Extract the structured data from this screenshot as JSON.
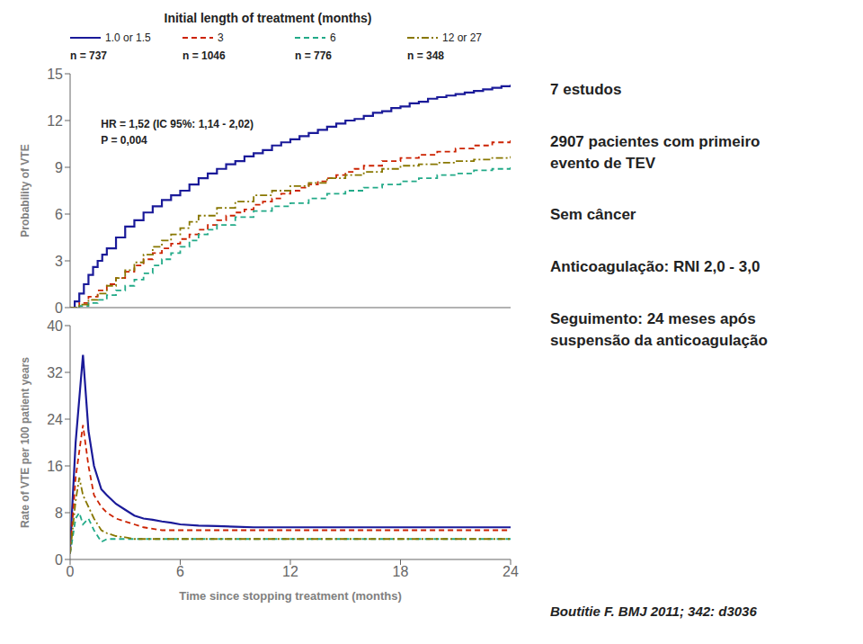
{
  "chart_data": [
    {
      "type": "step",
      "title": "Initial length of treatment (months)",
      "legend": "top",
      "grid": false,
      "tick_labels": "y",
      "y_label": "Probability of VTE",
      "xlim": [
        0,
        24
      ],
      "ylim": [
        0,
        15
      ],
      "yticks": [
        0,
        3,
        6,
        9,
        12,
        15
      ],
      "annotations": [
        [
          "n = 737",
          "n = 1046",
          "n = 776",
          "n = 348"
        ],
        [
          "HR = 1,52 (IC 95%: 1,14 - 2,02)",
          "P = 0,004"
        ]
      ],
      "series": [
        {
          "name": "1.0 or 1.5",
          "color": "#1a1a99",
          "line_style": "solid",
          "x": [
            0,
            0.25,
            0.5,
            0.75,
            1.0,
            1.25,
            1.5,
            1.75,
            2.0,
            2.5,
            3.0,
            3.5,
            4.0,
            4.5,
            5.0,
            5.5,
            6.0,
            6.5,
            7.0,
            7.5,
            8.0,
            8.5,
            9.0,
            9.5,
            10.0,
            10.5,
            11.0,
            11.5,
            12.0,
            12.5,
            13.0,
            13.5,
            14.0,
            14.5,
            15.0,
            15.5,
            16.0,
            16.5,
            17.0,
            17.5,
            18.0,
            18.5,
            19.0,
            19.5,
            20.0,
            20.5,
            21.0,
            21.5,
            22.0,
            22.5,
            23.0,
            23.5,
            24.0
          ],
          "values": [
            0,
            0.4,
            0.9,
            1.5,
            2.1,
            2.6,
            3.0,
            3.4,
            3.8,
            4.5,
            5.2,
            5.6,
            6.1,
            6.5,
            6.9,
            7.2,
            7.5,
            7.9,
            8.3,
            8.6,
            8.9,
            9.2,
            9.4,
            9.7,
            9.9,
            10.1,
            10.4,
            10.6,
            10.8,
            11.0,
            11.2,
            11.4,
            11.6,
            11.8,
            12.0,
            12.1,
            12.3,
            12.5,
            12.6,
            12.8,
            12.9,
            13.1,
            13.2,
            13.4,
            13.5,
            13.6,
            13.7,
            13.8,
            13.9,
            14.0,
            14.1,
            14.2,
            14.3
          ]
        },
        {
          "name": "3",
          "color": "#cc2200",
          "line_style": "dashed",
          "x": [
            0,
            0.5,
            1.0,
            1.5,
            2.0,
            2.5,
            3.0,
            3.5,
            4.0,
            4.5,
            5.0,
            5.5,
            6.0,
            6.5,
            7.0,
            7.5,
            8.0,
            8.5,
            9.0,
            9.5,
            10.0,
            10.5,
            11.0,
            11.5,
            12.0,
            12.5,
            13.0,
            13.5,
            14.0,
            14.5,
            15.0,
            15.5,
            16.0,
            17.0,
            18.0,
            19.0,
            20.0,
            21.0,
            22.0,
            23.0,
            24.0
          ],
          "values": [
            0,
            0.3,
            0.7,
            1.1,
            1.5,
            1.9,
            2.3,
            2.7,
            3.1,
            3.5,
            3.8,
            4.1,
            4.4,
            4.7,
            5.0,
            5.3,
            5.6,
            5.9,
            6.1,
            6.3,
            6.6,
            6.8,
            7.0,
            7.3,
            7.5,
            7.7,
            7.9,
            8.1,
            8.3,
            8.5,
            8.7,
            8.9,
            9.1,
            9.4,
            9.6,
            9.8,
            10.0,
            10.2,
            10.4,
            10.6,
            10.8
          ]
        },
        {
          "name": "6",
          "color": "#22aa88",
          "line_style": "dashed",
          "x": [
            0,
            0.5,
            1.0,
            1.5,
            2.0,
            2.5,
            3.0,
            3.5,
            4.0,
            4.5,
            5.0,
            5.5,
            6.0,
            6.5,
            7.0,
            7.5,
            8.0,
            9.0,
            10.0,
            11.0,
            12.0,
            13.0,
            14.0,
            15.0,
            16.0,
            17.0,
            18.0,
            19.0,
            20.0,
            21.0,
            22.0,
            23.0,
            24.0
          ],
          "values": [
            0,
            0.1,
            0.3,
            0.5,
            0.8,
            1.1,
            1.4,
            1.8,
            2.2,
            2.7,
            3.1,
            3.5,
            3.9,
            4.3,
            4.7,
            5.0,
            5.3,
            5.8,
            6.2,
            6.5,
            6.7,
            7.0,
            7.3,
            7.5,
            7.7,
            7.9,
            8.1,
            8.3,
            8.5,
            8.6,
            8.8,
            8.9,
            9.1
          ]
        },
        {
          "name": "12 or 27",
          "color": "#887700",
          "line_style": "dashdot",
          "x": [
            0,
            0.5,
            1.0,
            1.5,
            2.0,
            2.5,
            3.0,
            3.5,
            4.0,
            4.5,
            5.0,
            5.5,
            6.0,
            6.5,
            7.0,
            8.0,
            9.0,
            10.0,
            11.0,
            12.0,
            13.0,
            14.0,
            15.0,
            16.0,
            17.0,
            18.0,
            19.0,
            20.0,
            21.0,
            22.0,
            23.0,
            24.0
          ],
          "values": [
            0,
            0.2,
            0.5,
            0.9,
            1.4,
            1.9,
            2.4,
            2.9,
            3.4,
            3.9,
            4.3,
            4.7,
            5.1,
            5.5,
            5.9,
            6.4,
            6.8,
            7.2,
            7.5,
            7.8,
            8.0,
            8.3,
            8.5,
            8.7,
            8.9,
            9.1,
            9.2,
            9.3,
            9.4,
            9.5,
            9.6,
            9.7
          ]
        }
      ]
    },
    {
      "type": "line",
      "grid": false,
      "x_label": "Time since stopping treatment (months)",
      "y_label": "Rate of VTE per 100 patient years",
      "xlim": [
        0,
        24
      ],
      "xticks": [
        0,
        6,
        12,
        18,
        24
      ],
      "ylim": [
        0,
        40
      ],
      "yticks": [
        0,
        8,
        16,
        24,
        32,
        40
      ],
      "series": [
        {
          "color": "#1a1a99",
          "line_style": "solid",
          "x": [
            0,
            0.3,
            0.7,
            1.0,
            1.3,
            1.7,
            2.0,
            2.5,
            3.0,
            3.5,
            4.0,
            4.5,
            5.0,
            5.5,
            6.0,
            7.0,
            8.0,
            9.0,
            10.0,
            12.0,
            14.0,
            16.0,
            18.0,
            20.0,
            22.0,
            24.0
          ],
          "values": [
            2,
            20,
            35,
            22,
            16,
            12,
            11,
            9.5,
            8.5,
            7.5,
            7.0,
            6.8,
            6.5,
            6.3,
            6.0,
            5.8,
            5.7,
            5.6,
            5.5,
            5.5,
            5.5,
            5.5,
            5.5,
            5.5,
            5.5,
            5.5
          ]
        },
        {
          "color": "#cc2200",
          "line_style": "dashed",
          "x": [
            0,
            0.3,
            0.7,
            1.0,
            1.3,
            1.7,
            2.0,
            2.5,
            3.0,
            3.5,
            4.0,
            5.0,
            6.0,
            7.0,
            8.0,
            10.0,
            12.0,
            14.0,
            16.0,
            18.0,
            20.0,
            22.0,
            24.0
          ],
          "values": [
            1,
            14,
            23,
            16,
            11,
            9,
            8,
            7,
            6.5,
            6,
            5.5,
            5,
            5,
            5,
            5,
            5,
            5,
            5,
            5,
            5,
            5,
            5,
            5
          ]
        },
        {
          "color": "#22aa88",
          "line_style": "dashed",
          "x": [
            0,
            0.3,
            0.5,
            0.7,
            1.0,
            1.3,
            1.7,
            2.0,
            2.5,
            3.0,
            3.5,
            4.0,
            5.0,
            6.0,
            8.0,
            10.0,
            12.0,
            16.0,
            20.0,
            24.0
          ],
          "values": [
            1,
            7,
            8,
            6,
            7,
            5,
            3,
            3.5,
            3.5,
            3.5,
            3.5,
            3.5,
            3.5,
            3.5,
            3.5,
            3.5,
            3.5,
            3.5,
            3.5,
            3.5
          ]
        },
        {
          "color": "#887700",
          "line_style": "dashdot",
          "x": [
            0,
            0.3,
            0.5,
            0.7,
            1.0,
            1.3,
            1.5,
            1.7,
            2.0,
            2.5,
            3.0,
            3.5,
            4.0,
            5.0,
            6.0,
            8.0,
            10.0,
            12.0,
            16.0,
            20.0,
            24.0
          ],
          "values": [
            1,
            10,
            14,
            11,
            9,
            7,
            6,
            5,
            4.5,
            4,
            3.8,
            3.5,
            3.5,
            3.5,
            3.5,
            3.5,
            3.5,
            3.5,
            3.5,
            3.5,
            3.5
          ]
        }
      ]
    }
  ],
  "annotations": [
    "7 estudos",
    "2907 pacientes com primeiro\nevento de TEV",
    "Sem câncer",
    "Anticoagulação: RNI 2,0 - 3,0",
    "Seguimento: 24 meses após\nsuspensão da anticoagulação"
  ],
  "source": "Boutitie F. BMJ 2011; 342: d3036"
}
